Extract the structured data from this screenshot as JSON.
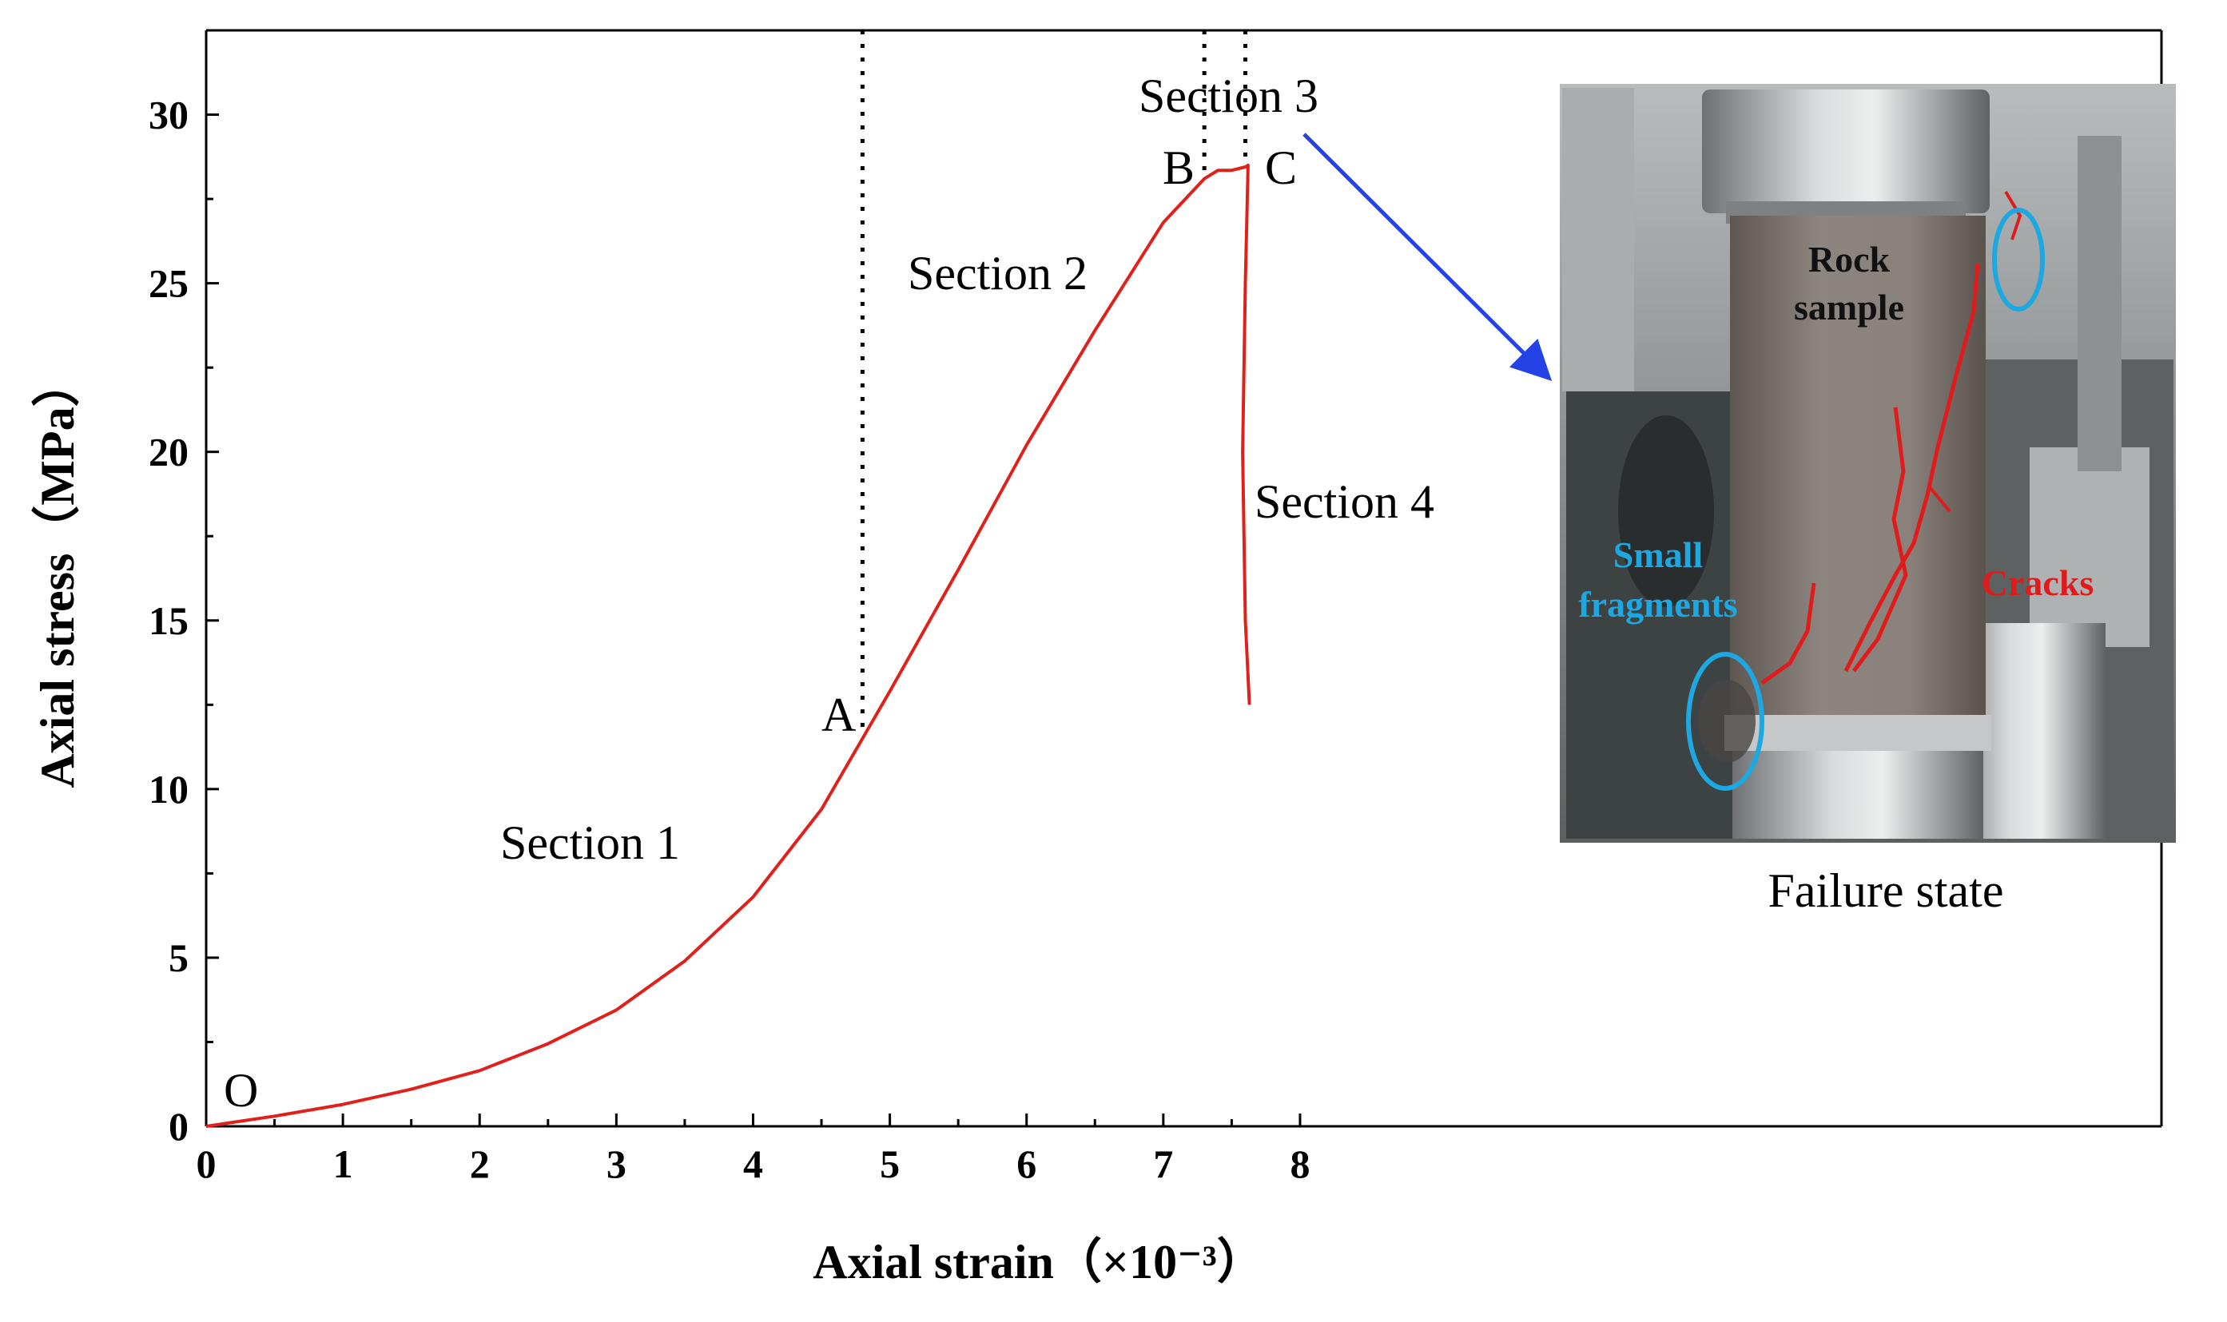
{
  "chart_data": {
    "type": "line",
    "xlabel": "Axial strain（×10⁻³）",
    "ylabel": "Axial stress（MPa）",
    "xlim": [
      0,
      14.3
    ],
    "ylim": [
      0,
      32.5
    ],
    "x_ticks": [
      "0",
      "1",
      "2",
      "3",
      "4",
      "5",
      "6",
      "7",
      "8"
    ],
    "y_ticks": [
      "0",
      "5",
      "10",
      "15",
      "20",
      "25",
      "30"
    ],
    "grid": false,
    "series": [
      {
        "color": "#e0201b",
        "x": [
          0,
          0.5,
          1.0,
          1.5,
          2.0,
          2.5,
          3.0,
          3.5,
          4.0,
          4.5,
          4.8,
          5.0,
          5.5,
          6.0,
          6.5,
          7.0,
          7.3,
          7.4,
          7.5,
          7.6,
          7.62,
          7.6,
          7.58,
          7.6,
          7.63
        ],
        "y": [
          0,
          0.3,
          0.65,
          1.1,
          1.65,
          2.45,
          3.45,
          4.9,
          6.8,
          9.4,
          11.5,
          12.9,
          16.5,
          20.2,
          23.6,
          26.8,
          28.1,
          28.35,
          28.35,
          28.45,
          28.5,
          25.0,
          20.0,
          15.0,
          12.5
        ]
      }
    ],
    "vertical_markers": [
      4.8,
      7.3,
      7.6
    ],
    "annotations": {
      "origin": "O",
      "point_a": "A",
      "point_b": "B",
      "point_c": "C",
      "section_1": "Section 1",
      "section_2": "Section 2",
      "section_3": "Section 3",
      "section_4": "Section 4"
    },
    "inset": {
      "caption": "Failure state",
      "labels": {
        "rock_sample_line1": "Rock",
        "rock_sample_line2": "sample",
        "small_fragments_line1": "Small",
        "small_fragments_line2": "fragments",
        "cracks": "Cracks"
      },
      "colors": {
        "curve": "#e0201b",
        "arrow": "#2343e6",
        "fragments": "#1ea8e2",
        "cracks": "#e01b1b"
      }
    }
  }
}
